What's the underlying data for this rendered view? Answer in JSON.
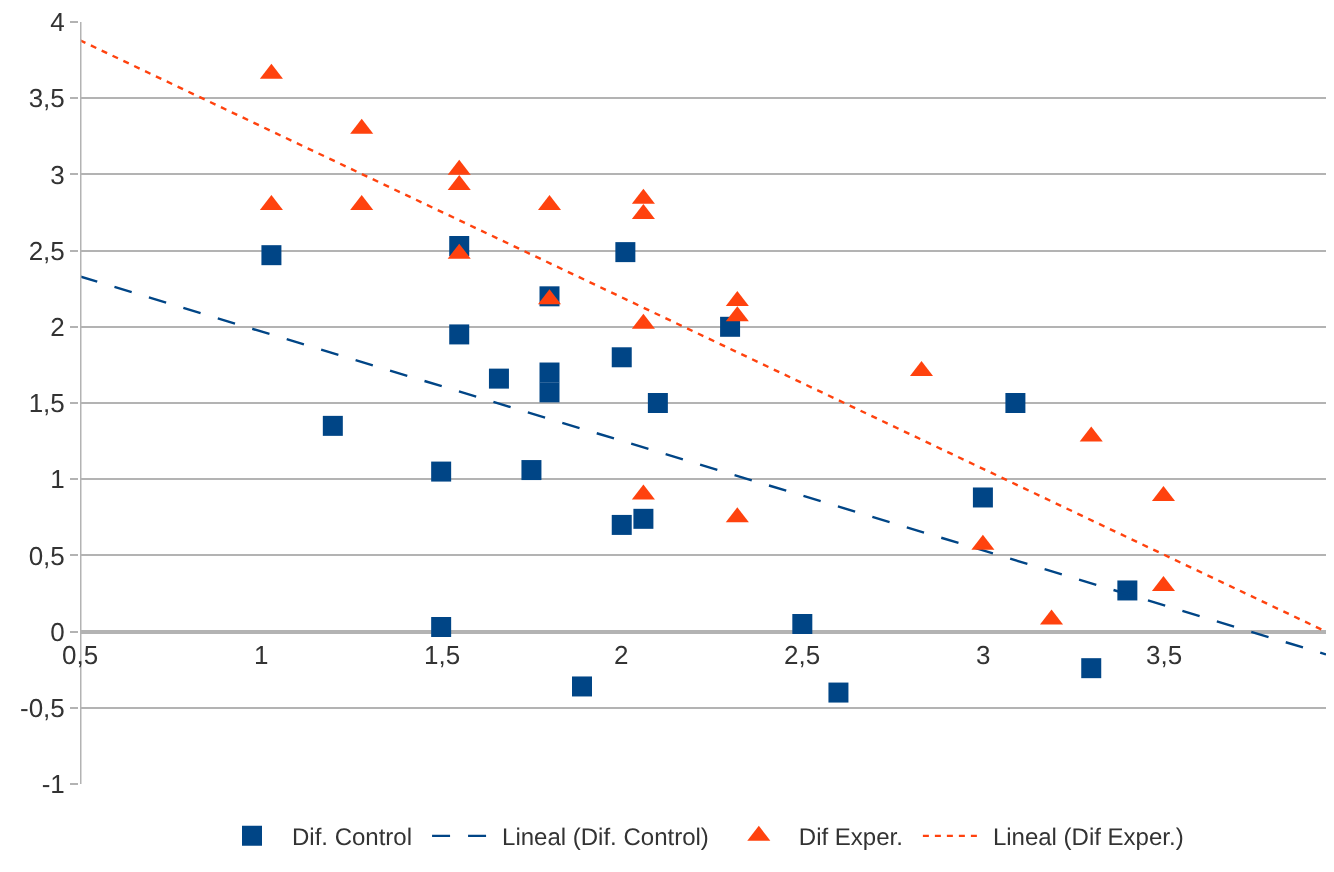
{
  "chart_data": {
    "type": "scatter",
    "xlim": [
      0.5,
      3.95
    ],
    "ylim": [
      -1,
      4
    ],
    "xticks": [
      {
        "value": 0.5,
        "label": "0,5"
      },
      1,
      {
        "value": 1.5,
        "label": "1,5"
      },
      2,
      {
        "value": 2.5,
        "label": "2,5"
      },
      3,
      {
        "value": 3.5,
        "label": "3,5"
      }
    ],
    "yticks": [
      -1,
      {
        "value": -0.5,
        "label": "-0,5"
      },
      0,
      {
        "value": 0.5,
        "label": "0,5"
      },
      1,
      {
        "value": 1.5,
        "label": "1,5"
      },
      2,
      {
        "value": 2.5,
        "label": "2,5"
      },
      3,
      {
        "value": 3.5,
        "label": "3,5"
      },
      4
    ],
    "grid": "y",
    "legend": "bottom",
    "series": [
      {
        "name": "Dif. Control",
        "marker": "square",
        "color": "#004586",
        "x": [
          1.03,
          1.2,
          1.5,
          1.5,
          1.55,
          1.55,
          1.66,
          1.75,
          1.8,
          1.8,
          1.8,
          1.89,
          2.0,
          2.0,
          2.01,
          2.06,
          2.1,
          2.3,
          2.5,
          2.6,
          3.0,
          3.09,
          3.3,
          3.4
        ],
        "values": [
          2.47,
          1.35,
          1.05,
          0.03,
          2.53,
          1.95,
          1.66,
          1.06,
          2.2,
          1.7,
          1.57,
          -0.36,
          1.8,
          0.7,
          2.49,
          0.74,
          1.5,
          2.0,
          0.05,
          -0.4,
          0.88,
          1.5,
          -0.24,
          0.27
        ]
      },
      {
        "name": "Lineal (Dif. Control)",
        "type": "line",
        "marker": "none",
        "line_style": "dashed",
        "color": "#004586",
        "x": [
          0.5,
          3.95
        ],
        "values": [
          2.33,
          -0.15
        ]
      },
      {
        "name": "Dif Exper.",
        "marker": "triangle",
        "color": "#ff420e",
        "x": [
          1.03,
          1.03,
          1.28,
          1.28,
          1.55,
          1.55,
          1.55,
          1.8,
          1.8,
          2.06,
          2.06,
          2.06,
          2.06,
          2.32,
          2.32,
          2.32,
          2.83,
          3.0,
          3.19,
          3.3,
          3.5,
          3.5
        ],
        "values": [
          3.66,
          2.8,
          3.3,
          2.8,
          3.03,
          2.93,
          2.48,
          2.8,
          2.18,
          2.84,
          2.74,
          2.02,
          0.9,
          2.17,
          2.07,
          0.75,
          1.71,
          0.57,
          0.08,
          1.28,
          0.89,
          0.3
        ]
      },
      {
        "name": "Lineal (Dif Exper.)",
        "type": "line",
        "marker": "none",
        "line_style": "dotted",
        "color": "#ff420e",
        "x": [
          0.5,
          3.95
        ],
        "values": [
          3.88,
          0.0
        ]
      }
    ]
  }
}
